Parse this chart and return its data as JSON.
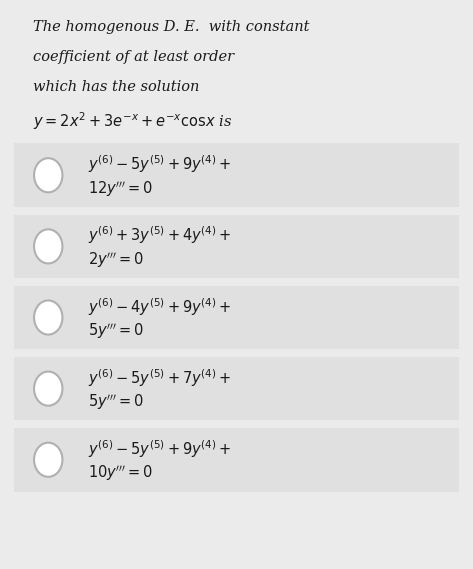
{
  "bg_color": "#ebebeb",
  "text_color": "#1a1a1a",
  "option_bg": "#e0e0e0",
  "circle_color": "#b0b0b0",
  "title_lines": [
    "The homogenous D. E.  with constant",
    "coefficient of at least order",
    "which has the solution",
    "$y = 2x^2 + 3e^{-x} + e^{-x}\\mathrm{cos}x$ is"
  ],
  "option_line1": [
    "$y^{(6)} - 5y^{(5)} + 9y^{(4)} +$",
    "$y^{(6)} + 3y^{(5)} + 4y^{(4)} +$",
    "$y^{(6)} - 4y^{(5)} + 9y^{(4)} +$",
    "$y^{(6)} - 5y^{(5)} + 7y^{(4)} +$",
    "$y^{(6)} - 5y^{(5)} + 9y^{(4)} +$"
  ],
  "option_line2_prefix": [
    "12",
    "2",
    "5",
    "5",
    "10"
  ]
}
